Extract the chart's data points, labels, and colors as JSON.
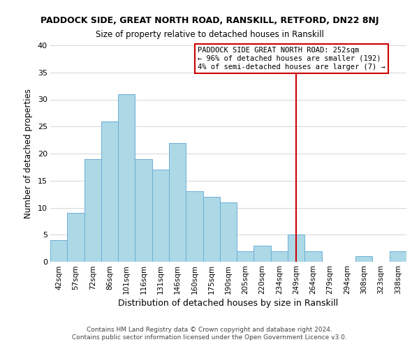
{
  "title": "PADDOCK SIDE, GREAT NORTH ROAD, RANSKILL, RETFORD, DN22 8NJ",
  "subtitle": "Size of property relative to detached houses in Ranskill",
  "xlabel": "Distribution of detached houses by size in Ranskill",
  "ylabel": "Number of detached properties",
  "bar_labels": [
    "42sqm",
    "57sqm",
    "72sqm",
    "86sqm",
    "101sqm",
    "116sqm",
    "131sqm",
    "146sqm",
    "160sqm",
    "175sqm",
    "190sqm",
    "205sqm",
    "220sqm",
    "234sqm",
    "249sqm",
    "264sqm",
    "279sqm",
    "294sqm",
    "308sqm",
    "323sqm",
    "338sqm"
  ],
  "bar_heights": [
    4,
    9,
    19,
    26,
    31,
    19,
    17,
    22,
    13,
    12,
    11,
    2,
    3,
    2,
    5,
    2,
    0,
    0,
    1,
    0,
    2
  ],
  "bar_color": "#add8e6",
  "bar_edge_color": "#6aafd6",
  "background_color": "#ffffff",
  "grid_color": "#d0d0d0",
  "vline_x_index": 14,
  "vline_color": "#cc0000",
  "annotation_text": "PADDOCK SIDE GREAT NORTH ROAD: 252sqm\n← 96% of detached houses are smaller (192)\n4% of semi-detached houses are larger (7) →",
  "annotation_box_edge": "#cc0000",
  "ylim": [
    0,
    40
  ],
  "yticks": [
    0,
    5,
    10,
    15,
    20,
    25,
    30,
    35,
    40
  ],
  "footer": "Contains HM Land Registry data © Crown copyright and database right 2024.\nContains public sector information licensed under the Open Government Licence v3.0."
}
